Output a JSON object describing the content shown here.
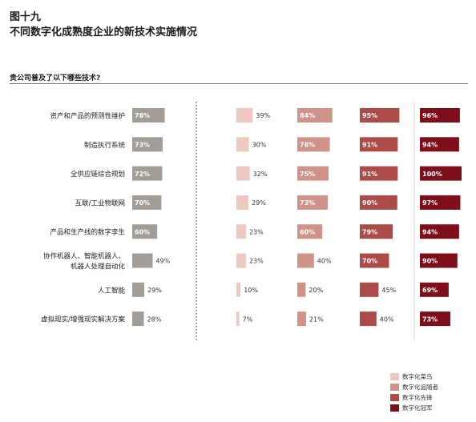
{
  "header": {
    "figure_number": "图十九",
    "title": "不同数字化成熟度企业的新技术实施情况",
    "question": "贵公司普及了以下哪些技术?"
  },
  "chart_data": [
    {
      "type": "bar",
      "orientation": "horizontal",
      "categories": [
        [
          "资产和产品的预测性维护"
        ],
        [
          "制造执行系统"
        ],
        [
          "全供应链综合规划"
        ],
        [
          "互联/工业物联网"
        ],
        [
          "产品和生产线的数字孪生"
        ],
        [
          "协作机器人、智能机器人、",
          "机器人处理自动化"
        ],
        [
          "人工智能"
        ],
        [
          "虚拟现实/增强现实解决方案"
        ]
      ],
      "series": [
        {
          "values": [
            78,
            73,
            72,
            70,
            60,
            49,
            29,
            28
          ],
          "color": "#a39d97"
        }
      ],
      "xlim": [
        0,
        100
      ]
    },
    {
      "type": "bar",
      "orientation": "horizontal",
      "categories": [
        [
          "资产和产品的预测性维护"
        ],
        [
          "制造执行系统"
        ],
        [
          "全供应链综合规划"
        ],
        [
          "互联/工业物联网"
        ],
        [
          "产品和生产线的数字孪生"
        ],
        [
          "协作机器人、智能机器人、",
          "机器人处理自动化"
        ],
        [
          "人工智能"
        ],
        [
          "虚拟现实/增强现实解决方案"
        ]
      ],
      "series": [
        {
          "name": "数字化菜鸟",
          "values": [
            39,
            30,
            32,
            29,
            23,
            23,
            10,
            7
          ],
          "color": "#edc9c2"
        },
        {
          "name": "数字化追随者",
          "values": [
            84,
            78,
            75,
            73,
            60,
            40,
            20,
            21
          ],
          "color": "#cf938a"
        },
        {
          "name": "数字化先锋",
          "values": [
            95,
            91,
            91,
            90,
            79,
            70,
            45,
            40
          ],
          "color": "#ac4b47"
        },
        {
          "name": "数字化冠军",
          "values": [
            96,
            94,
            100,
            97,
            94,
            90,
            69,
            73
          ],
          "color": "#7d0e1a"
        }
      ],
      "xlim": [
        0,
        100
      ]
    }
  ]
}
